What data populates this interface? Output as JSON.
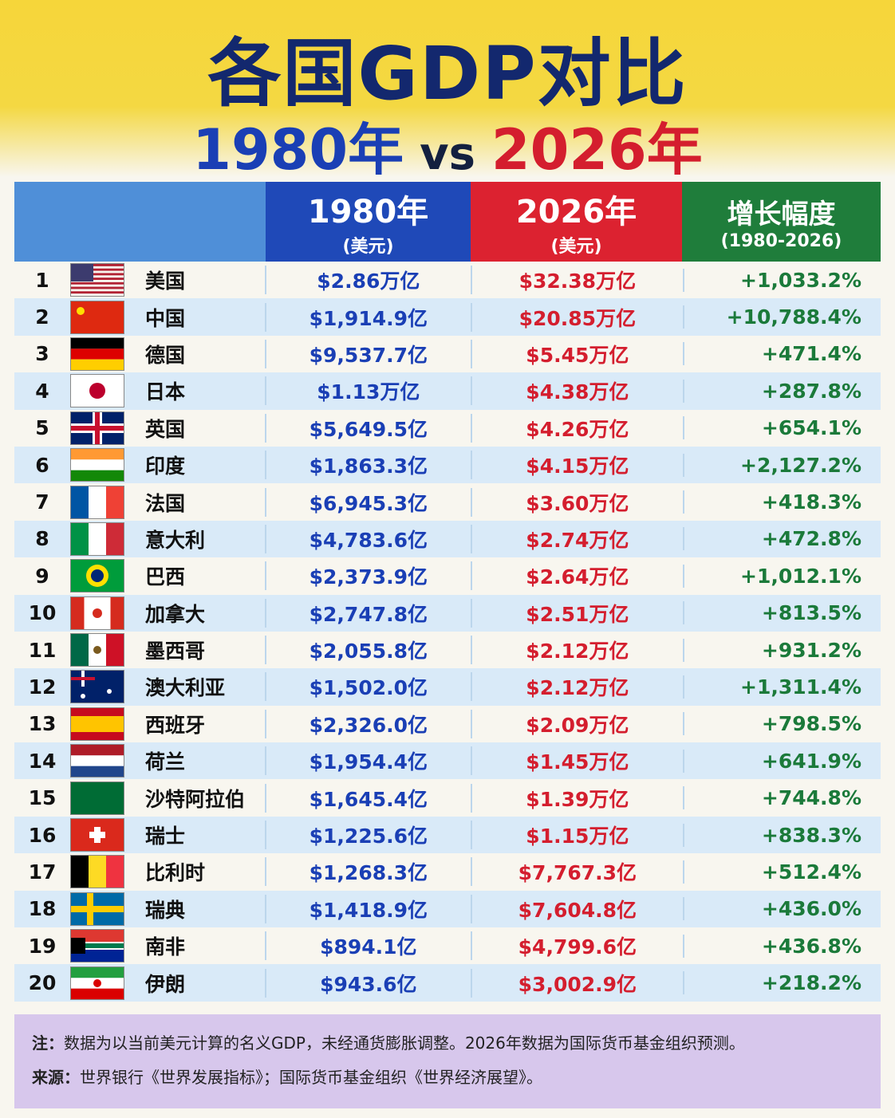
{
  "header": {
    "title": "各国GDP对比",
    "subtitle": {
      "left": "1980年",
      "middle": "vs",
      "right": "2026年"
    }
  },
  "table": {
    "columns": [
      {
        "title": "1980年",
        "unit": "(美元)"
      },
      {
        "title": "2026年",
        "unit": "(美元)"
      },
      {
        "title": "增长幅度",
        "unit": "(1980-2026)"
      }
    ],
    "rows": [
      [
        1,
        "美国",
        "$2.86万亿",
        "$32.38万亿",
        "+1,033.2%"
      ],
      [
        2,
        "中国",
        "$1,914.9亿",
        "$20.85万亿",
        "+10,788.4%"
      ],
      [
        3,
        "德国",
        "$9,537.7亿",
        "$5.45万亿",
        "+471.4%"
      ],
      [
        4,
        "日本",
        "$1.13万亿",
        "$4.38万亿",
        "+287.8%"
      ],
      [
        5,
        "英国",
        "$5,649.5亿",
        "$4.26万亿",
        "+654.1%"
      ],
      [
        6,
        "印度",
        "$1,863.3亿",
        "$4.15万亿",
        "+2,127.2%"
      ],
      [
        7,
        "法国",
        "$6,945.3亿",
        "$3.60万亿",
        "+418.3%"
      ],
      [
        8,
        "意大利",
        "$4,783.6亿",
        "$2.74万亿",
        "+472.8%"
      ],
      [
        9,
        "巴西",
        "$2,373.9亿",
        "$2.64万亿",
        "+1,012.1%"
      ],
      [
        10,
        "加拿大",
        "$2,747.8亿",
        "$2.51万亿",
        "+813.5%"
      ],
      [
        11,
        "墨西哥",
        "$2,055.8亿",
        "$2.12万亿",
        "+931.2%"
      ],
      [
        12,
        "澳大利亚",
        "$1,502.0亿",
        "$2.12万亿",
        "+1,311.4%"
      ],
      [
        13,
        "西班牙",
        "$2,326.0亿",
        "$2.09万亿",
        "+798.5%"
      ],
      [
        14,
        "荷兰",
        "$1,954.4亿",
        "$1.45万亿",
        "+641.9%"
      ],
      [
        15,
        "沙特阿拉伯",
        "$1,645.4亿",
        "$1.39万亿",
        "+744.8%"
      ],
      [
        16,
        "瑞士",
        "$1,225.6亿",
        "$1.15万亿",
        "+838.3%"
      ],
      [
        17,
        "比利时",
        "$1,268.3亿",
        "$7,767.3亿",
        "+512.4%"
      ],
      [
        18,
        "瑞典",
        "$1,418.9亿",
        "$7,604.8亿",
        "+436.0%"
      ],
      [
        19,
        "南非",
        "$894.1亿",
        "$4,799.6亿",
        "+436.8%"
      ],
      [
        20,
        "伊朗",
        "$943.6亿",
        "$3,002.9亿",
        "+218.2%"
      ]
    ]
  },
  "notes": [
    {
      "label": "注：",
      "text": "数据为以当前美元计算的名义GDP，未经通货膨胀调整。2026年数据为国际货币基金组织预测。"
    },
    {
      "label": "来源：",
      "text": "世界银行《世界发展指标》；国际货币基金组织《世界经济展望》。"
    }
  ]
}
